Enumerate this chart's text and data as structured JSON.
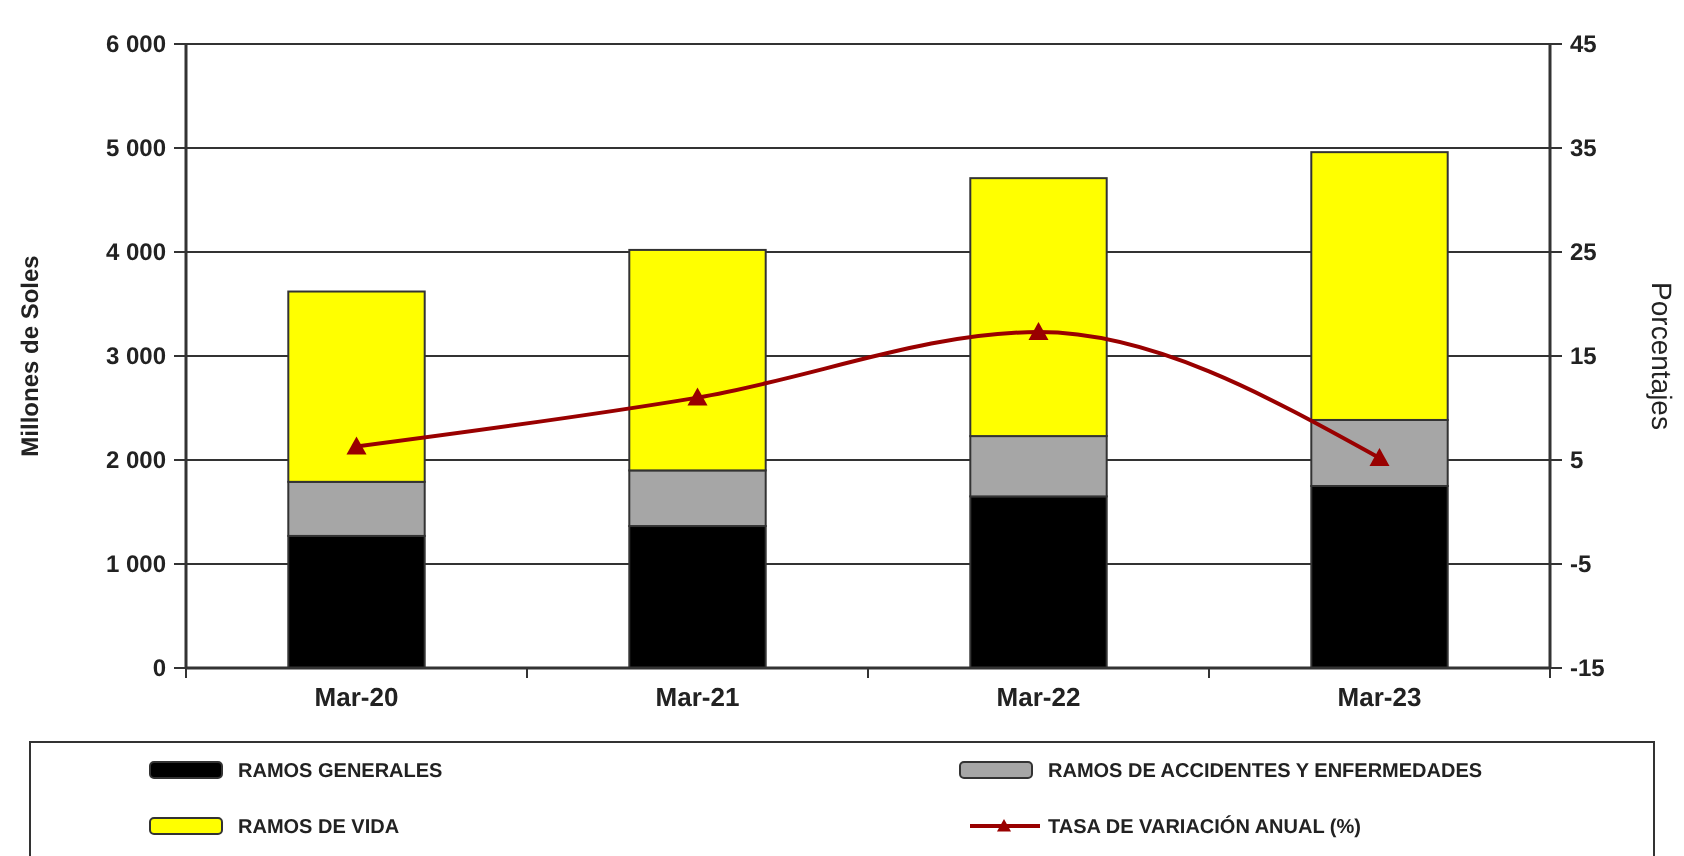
{
  "chart_data": {
    "type": "bar",
    "stacked": true,
    "ylabel": "Millones de Soles",
    "y2label": "Porcentajes",
    "categories": [
      "Mar-20",
      "Mar-21",
      "Mar-22",
      "Mar-23"
    ],
    "series": [
      {
        "name": "RAMOS GENERALES",
        "color": "#000000",
        "values": [
          1270,
          1365,
          1650,
          1750
        ]
      },
      {
        "name": "RAMOS DE ACCIDENTES Y ENFERMEDADES",
        "color": "#a6a6a6",
        "values": [
          520,
          535,
          580,
          635
        ]
      },
      {
        "name": "RAMOS DE VIDA",
        "color": "#ffff00",
        "values": [
          1830,
          2120,
          2480,
          2575
        ]
      },
      {
        "name": "TASA DE VARIACIÓN ANUAL (%)",
        "type": "line",
        "axis": "y2",
        "color": "#990000",
        "marker": "triangle",
        "values": [
          6.3,
          11.0,
          17.3,
          5.2
        ]
      }
    ],
    "ylim": [
      0,
      6000
    ],
    "yticks": [
      {
        "value": 0,
        "label": "0"
      },
      {
        "value": 1000,
        "label": "1 000"
      },
      {
        "value": 2000,
        "label": "2 000"
      },
      {
        "value": 3000,
        "label": "3 000"
      },
      {
        "value": 4000,
        "label": "4 000"
      },
      {
        "value": 5000,
        "label": "5 000"
      },
      {
        "value": 6000,
        "label": "6 000"
      }
    ],
    "y2lim": [
      -15,
      45
    ],
    "y2ticks": [
      -15,
      -5,
      5,
      15,
      25,
      35,
      45
    ],
    "grid": "y",
    "legend": "bottom"
  }
}
